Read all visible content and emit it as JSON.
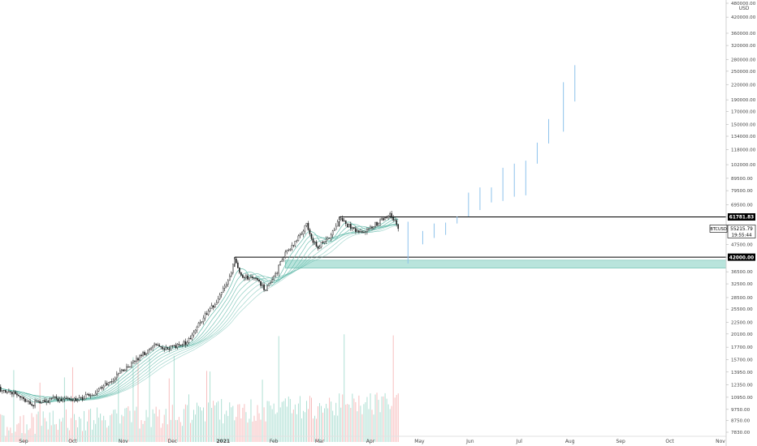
{
  "chart_data": {
    "type": "candlestick",
    "symbol": "BTCUSD",
    "currency": "USD",
    "scale": "log",
    "ylim": [
      7830,
      480000
    ],
    "y_ticks": [
      "7830.00",
      "8750.00",
      "9750.00",
      "10950.00",
      "12350.00",
      "13950.00",
      "15700.00",
      "17700.00",
      "20100.00",
      "22500.00",
      "25500.00",
      "28500.00",
      "32500.00",
      "36500.00",
      "42000.00",
      "47500.00",
      "55000.00",
      "62000.00",
      "69500.00",
      "79500.00",
      "89500.00",
      "102000.00",
      "118000.00",
      "134000.00",
      "150000.00",
      "170000.00",
      "190000.00",
      "220000.00",
      "250000.00",
      "280000.00",
      "320000.00",
      "360000.00",
      "420000.00",
      "480000.00"
    ],
    "x_ticks": [
      {
        "label": "Sep",
        "date": "2020-09-01"
      },
      {
        "label": "Oct",
        "date": "2020-10-01"
      },
      {
        "label": "Nov",
        "date": "2020-11-01"
      },
      {
        "label": "Dec",
        "date": "2020-12-01"
      },
      {
        "label": "2021",
        "date": "2021-01-01"
      },
      {
        "label": "Feb",
        "date": "2021-02-01"
      },
      {
        "label": "Mar",
        "date": "2021-03-01"
      },
      {
        "label": "Apr",
        "date": "2021-04-01"
      },
      {
        "label": "May",
        "date": "2021-05-01"
      },
      {
        "label": "Jun",
        "date": "2021-06-01"
      },
      {
        "label": "Jul",
        "date": "2021-07-01"
      },
      {
        "label": "Aug",
        "date": "2021-08-01"
      },
      {
        "label": "Sep",
        "date": "2021-09-01"
      },
      {
        "label": "Oct",
        "date": "2021-10-01"
      },
      {
        "label": "Nov",
        "date": "2021-11-01"
      }
    ],
    "price_anchors": [
      [
        "2020-08-15",
        12000
      ],
      [
        "2020-08-25",
        11500
      ],
      [
        "2020-09-05",
        10200
      ],
      [
        "2020-09-20",
        10800
      ],
      [
        "2020-10-05",
        10700
      ],
      [
        "2020-10-15",
        11400
      ],
      [
        "2020-10-25",
        13000
      ],
      [
        "2020-11-05",
        15000
      ],
      [
        "2020-11-20",
        18000
      ],
      [
        "2020-11-28",
        17500
      ],
      [
        "2020-12-10",
        18500
      ],
      [
        "2020-12-18",
        22500
      ],
      [
        "2020-12-27",
        27000
      ],
      [
        "2021-01-04",
        33000
      ],
      [
        "2021-01-08",
        40500
      ],
      [
        "2021-01-12",
        35000
      ],
      [
        "2021-01-20",
        34500
      ],
      [
        "2021-01-27",
        30500
      ],
      [
        "2021-02-02",
        35500
      ],
      [
        "2021-02-08",
        44000
      ],
      [
        "2021-02-14",
        48500
      ],
      [
        "2021-02-21",
        57000
      ],
      [
        "2021-02-27",
        46000
      ],
      [
        "2021-03-07",
        51000
      ],
      [
        "2021-03-13",
        60500
      ],
      [
        "2021-03-25",
        53000
      ],
      [
        "2021-04-05",
        58000
      ],
      [
        "2021-04-13",
        62500
      ],
      [
        "2021-04-17",
        58500
      ],
      [
        "2021-04-18",
        55216
      ]
    ],
    "moving_averages": 8,
    "projection_bars": [
      {
        "date": "2021-04-24",
        "low": 39500,
        "high": 59000
      },
      {
        "date": "2021-05-03",
        "low": 47500,
        "high": 54000
      },
      {
        "date": "2021-05-10",
        "low": 50500,
        "high": 58000
      },
      {
        "date": "2021-05-17",
        "low": 52000,
        "high": 58500
      },
      {
        "date": "2021-05-24",
        "low": 58000,
        "high": 62000
      },
      {
        "date": "2021-05-31",
        "low": 62000,
        "high": 78000
      },
      {
        "date": "2021-06-07",
        "low": 66000,
        "high": 82000
      },
      {
        "date": "2021-06-14",
        "low": 71000,
        "high": 82000
      },
      {
        "date": "2021-06-21",
        "low": 72000,
        "high": 99000
      },
      {
        "date": "2021-06-28",
        "low": 75000,
        "high": 103000
      },
      {
        "date": "2021-07-05",
        "low": 76000,
        "high": 106000
      },
      {
        "date": "2021-07-12",
        "low": 103000,
        "high": 126000
      },
      {
        "date": "2021-07-19",
        "low": 125000,
        "high": 158000
      },
      {
        "date": "2021-07-28",
        "low": 140000,
        "high": 225000
      },
      {
        "date": "2021-08-04",
        "low": 187000,
        "high": 265000
      }
    ],
    "levels": [
      {
        "price": 61781.83,
        "label": "61781.83",
        "from": "2021-03-13"
      },
      {
        "price": 42000.0,
        "label": "42000.00",
        "from": "2021-01-08"
      }
    ],
    "support_zone": {
      "from": "2021-02-08",
      "top": 40800,
      "bottom": 37800
    },
    "current_price": {
      "label": "55215.79",
      "value": 55215.79,
      "timer": "19:55:44",
      "symbol_label": "BTCUSD"
    },
    "colors": {
      "candle_up": "#1e1e1e",
      "candle_down": "#1e1e1e",
      "ma": "#5fb8a8",
      "zone": "#b9e4dc",
      "projection": "#8ec3ec",
      "volume_up": "#a6dccf",
      "volume_down": "#f6b7b7",
      "level_line": "#000000",
      "axis_text": "#444444"
    }
  }
}
